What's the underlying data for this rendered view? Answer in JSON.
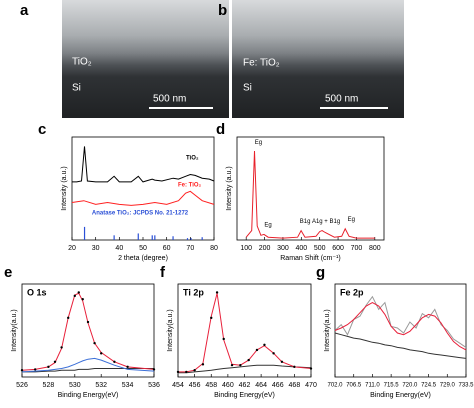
{
  "images": [
    {
      "panel_label": "a",
      "layer_label": "TiO₂",
      "substrate_label": "Si",
      "scale_bar": "500 nm"
    },
    {
      "panel_label": "b",
      "layer_label": "Fe: TiO₂",
      "substrate_label": "Si",
      "scale_bar": "500 nm"
    }
  ],
  "chart_data": [
    {
      "type": "line",
      "panel_label": "c",
      "xlabel": "2 theta (degree)",
      "ylabel": "Intensity (a.u.)",
      "xlim": [
        20,
        80
      ],
      "xticks": [
        20,
        30,
        40,
        50,
        60,
        70,
        80
      ],
      "ylim": [
        0,
        110
      ],
      "series": [
        {
          "name": "TiO₂",
          "color": "#000000",
          "style": "line",
          "x": [
            20,
            22,
            24,
            25.3,
            26.5,
            30,
            35,
            37.8,
            40,
            45,
            48,
            50,
            53.9,
            55,
            58,
            62.7,
            65,
            68,
            70,
            72,
            75,
            78,
            80
          ],
          "values": [
            62,
            62,
            63,
            100,
            63,
            62,
            62,
            68,
            62,
            62,
            68,
            62,
            65,
            64,
            63,
            66,
            65,
            68,
            70,
            69,
            66,
            65,
            63
          ]
        },
        {
          "name": "Fe: TiO₂",
          "color": "#ff2020",
          "style": "line",
          "x": [
            20,
            25,
            30,
            35,
            40,
            45,
            50,
            55,
            60,
            65,
            68,
            70,
            72,
            75,
            80
          ],
          "values": [
            40,
            42,
            38,
            40,
            38,
            37,
            38,
            40,
            38,
            42,
            50,
            52,
            48,
            42,
            38
          ]
        },
        {
          "name": "Anatase TiO₂: JCPDS No. 21-1272",
          "color": "#2a4fd6",
          "style": "sticks",
          "x": [
            25.3,
            37.8,
            48,
            53.9,
            55,
            62.7,
            68.8,
            70.3,
            75
          ],
          "values": [
            14,
            5,
            7,
            5,
            5,
            4,
            2,
            2,
            3
          ]
        }
      ]
    },
    {
      "type": "line",
      "panel_label": "d",
      "xlabel": "Raman Shift (cm⁻¹)",
      "ylabel": "Intensity (a.u.)",
      "xlim": [
        50,
        850
      ],
      "xticks": [
        100,
        200,
        300,
        400,
        500,
        600,
        700,
        800
      ],
      "ylim": [
        0,
        110
      ],
      "series": [
        {
          "color": "#e8202a",
          "style": "line",
          "x": [
            100,
            130,
            145,
            160,
            180,
            197,
            220,
            300,
            380,
            399,
            420,
            480,
            500,
            513,
            530,
            580,
            620,
            639,
            660,
            700,
            800
          ],
          "values": [
            3,
            10,
            95,
            15,
            5,
            6,
            3,
            2,
            3,
            10,
            3,
            4,
            9,
            10,
            8,
            3,
            4,
            12,
            4,
            2,
            2
          ]
        }
      ],
      "annotations": [
        {
          "text": "Eg",
          "x": 145,
          "y": 104
        },
        {
          "text": "Eg",
          "x": 197,
          "y": 16
        },
        {
          "text": "B1g",
          "x": 399,
          "y": 20
        },
        {
          "text": "A1g + B1g",
          "x": 513,
          "y": 20
        },
        {
          "text": "Eg",
          "x": 650,
          "y": 22
        }
      ]
    },
    {
      "type": "line",
      "panel_label": "e",
      "title": "O 1s",
      "xlabel": "Binding Energy(eV)",
      "ylabel": "Intensity(a.u.)",
      "xlim": [
        526,
        536
      ],
      "xticks": [
        526,
        528,
        530,
        532,
        534,
        536
      ],
      "ylim": [
        0,
        110
      ],
      "series": [
        {
          "color": "#333333",
          "style": "line",
          "x": [
            526,
            527,
            528,
            528.5,
            529,
            529.5,
            530,
            530.3,
            530.6,
            531,
            531.5,
            532,
            533,
            534,
            536
          ],
          "values": [
            6,
            6,
            7,
            7,
            8,
            8,
            8,
            9,
            9,
            9,
            10,
            10,
            10,
            10,
            10
          ]
        },
        {
          "color": "#3b6fd8",
          "style": "line",
          "x": [
            526,
            527,
            528,
            528.5,
            529,
            529.5,
            530,
            530.3,
            530.6,
            531,
            531.5,
            532,
            533,
            534,
            536
          ],
          "values": [
            6,
            7,
            8,
            9,
            10,
            12,
            15,
            17,
            19,
            21,
            22,
            20,
            14,
            9,
            7
          ]
        },
        {
          "color": "#e8203a",
          "style": "line",
          "x": [
            526,
            527,
            528,
            528.5,
            529,
            529.5,
            530,
            530.3,
            530.6,
            531,
            531.5,
            532,
            533,
            534,
            536
          ],
          "values": [
            8,
            9,
            12,
            17,
            34,
            70,
            97,
            99,
            90,
            64,
            40,
            29,
            18,
            12,
            9
          ]
        },
        {
          "color": "#000000",
          "style": "markers",
          "x": [
            526,
            527,
            528,
            528.5,
            529,
            529.5,
            530,
            530.3,
            530.6,
            531,
            531.5,
            532,
            533,
            534,
            536
          ],
          "values": [
            8,
            9,
            12,
            18,
            35,
            70,
            96,
            100,
            92,
            65,
            40,
            28,
            18,
            12,
            9
          ]
        }
      ]
    },
    {
      "type": "line",
      "panel_label": "f",
      "title": "Ti 2p",
      "xlabel": "Binding Energy(eV)",
      "ylabel": "Intensity(a.u.)",
      "xlim": [
        454,
        470
      ],
      "xticks": [
        454,
        456,
        458,
        460,
        462,
        464,
        466,
        468,
        470
      ],
      "ylim": [
        0,
        110
      ],
      "series": [
        {
          "color": "#333333",
          "style": "line",
          "x": [
            454,
            455,
            456,
            457,
            458,
            458.7,
            459.5,
            460.5,
            461.5,
            462.5,
            463.5,
            464.4,
            465.5,
            466.5,
            468,
            470
          ],
          "values": [
            5,
            5,
            6,
            7,
            8,
            9,
            10,
            11,
            12,
            13,
            14,
            14,
            14,
            13,
            12,
            11
          ]
        },
        {
          "color": "#e8203a",
          "style": "line",
          "x": [
            454,
            455,
            456,
            457,
            458,
            458.7,
            459.5,
            460.5,
            461.5,
            462.5,
            463.5,
            464.4,
            465.5,
            466.5,
            468,
            470
          ],
          "values": [
            6,
            6,
            8,
            16,
            72,
            99,
            44,
            15,
            14,
            20,
            32,
            37,
            28,
            18,
            12,
            10
          ]
        },
        {
          "color": "#000000",
          "style": "markers",
          "x": [
            454,
            455,
            456,
            457,
            458,
            458.7,
            459.5,
            460.5,
            461.5,
            462.5,
            463.5,
            464.4,
            465.5,
            466.5,
            468,
            470
          ],
          "values": [
            6,
            6,
            8,
            15,
            70,
            100,
            45,
            14,
            14,
            20,
            32,
            38,
            28,
            18,
            12,
            10
          ]
        }
      ]
    },
    {
      "type": "line",
      "panel_label": "g",
      "title": "Fe 2p",
      "xlabel": "Binding Energy(eV)",
      "ylabel": "Intensity(a.u.)",
      "xlim": [
        702,
        733.5
      ],
      "xticks": [
        {
          "value": 702,
          "label": "702.0"
        },
        706.5,
        {
          "value": 711,
          "label": "711.0"
        },
        715.5,
        {
          "value": 720,
          "label": "720.0"
        },
        724.5,
        {
          "value": 729,
          "label": "729.0"
        },
        733.5
      ],
      "ylim": [
        0,
        110
      ],
      "series": [
        {
          "color": "#9a9a9a",
          "style": "line",
          "x": [
            702,
            703.5,
            705,
            706.5,
            708,
            709.5,
            711,
            712.5,
            714,
            715.5,
            717,
            718.5,
            720,
            721.5,
            723,
            724.5,
            726,
            727.5,
            729,
            730.5,
            732,
            733.5
          ],
          "values": [
            55,
            62,
            50,
            68,
            72,
            85,
            95,
            80,
            88,
            60,
            58,
            52,
            65,
            58,
            75,
            70,
            80,
            62,
            55,
            45,
            40,
            35
          ]
        },
        {
          "color": "#333333",
          "style": "line",
          "x": [
            702,
            703.5,
            705,
            706.5,
            708,
            709.5,
            711,
            712.5,
            714,
            715.5,
            717,
            718.5,
            720,
            721.5,
            723,
            724.5,
            726,
            727.5,
            729,
            730.5,
            732,
            733.5
          ],
          "values": [
            52,
            50,
            48,
            46,
            45,
            43,
            41,
            40,
            38,
            37,
            35,
            34,
            32,
            31,
            30,
            28,
            27,
            26,
            25,
            24,
            23,
            22
          ]
        },
        {
          "color": "#e8203a",
          "style": "line",
          "x": [
            702,
            703.5,
            705,
            706.5,
            708,
            709.5,
            711,
            712.5,
            714,
            715.5,
            717,
            718.5,
            720,
            721.5,
            723,
            724.5,
            726,
            727.5,
            729,
            730.5,
            732,
            733.5
          ],
          "values": [
            55,
            58,
            62,
            68,
            76,
            84,
            88,
            84,
            74,
            60,
            52,
            50,
            54,
            62,
            70,
            74,
            72,
            64,
            52,
            42,
            36,
            32
          ]
        }
      ]
    }
  ]
}
